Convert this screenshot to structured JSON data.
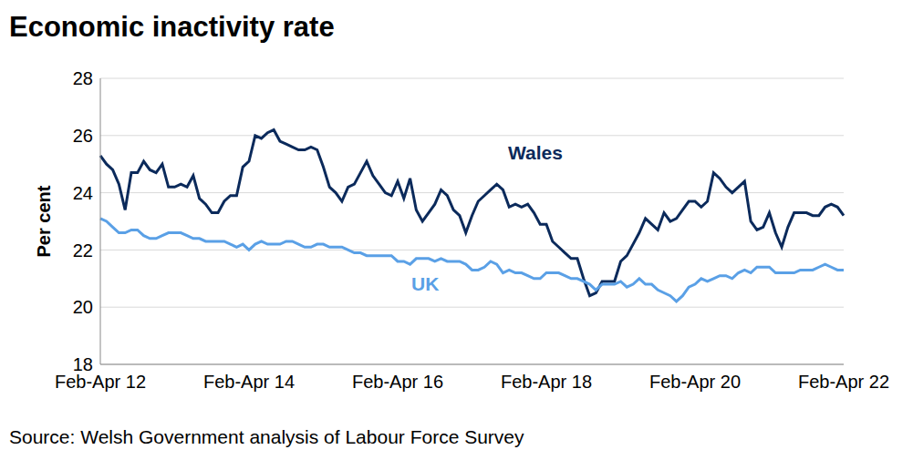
{
  "chart_data": {
    "type": "line",
    "title": "Economic inactivity rate",
    "y_label": "Per cent",
    "source": "Source: Welsh Government analysis of Labour Force Survey",
    "categories": [
      "Feb-Apr 12",
      null,
      null,
      null,
      null,
      null,
      null,
      null,
      null,
      null,
      null,
      null,
      null,
      null,
      null,
      null,
      null,
      null,
      null,
      null,
      null,
      null,
      null,
      null,
      "Feb-Apr 14",
      null,
      null,
      null,
      null,
      null,
      null,
      null,
      null,
      null,
      null,
      null,
      null,
      null,
      null,
      null,
      null,
      null,
      null,
      null,
      null,
      null,
      null,
      null,
      "Feb-Apr 16",
      null,
      null,
      null,
      null,
      null,
      null,
      null,
      null,
      null,
      null,
      null,
      null,
      null,
      null,
      null,
      null,
      null,
      null,
      null,
      null,
      null,
      null,
      null,
      "Feb-Apr 18",
      null,
      null,
      null,
      null,
      null,
      null,
      null,
      null,
      null,
      null,
      null,
      null,
      null,
      null,
      null,
      null,
      null,
      null,
      null,
      null,
      null,
      null,
      null,
      "Feb-Apr 20",
      null,
      null,
      null,
      null,
      null,
      null,
      null,
      null,
      null,
      null,
      null,
      null,
      null,
      null,
      null,
      null,
      null,
      null,
      null,
      null,
      null,
      null,
      null,
      "Feb-Apr 22"
    ],
    "series": [
      {
        "name": "Wales",
        "color": "#0b2a5b",
        "values": [
          25.3,
          25.0,
          24.8,
          24.3,
          23.4,
          24.7,
          24.7,
          25.1,
          24.8,
          24.7,
          25.0,
          24.2,
          24.2,
          24.3,
          24.2,
          24.6,
          23.8,
          23.6,
          23.3,
          23.3,
          23.7,
          23.9,
          23.9,
          24.9,
          25.1,
          26.0,
          25.9,
          26.1,
          26.2,
          25.8,
          25.7,
          25.6,
          25.5,
          25.5,
          25.6,
          25.5,
          24.9,
          24.2,
          24.0,
          23.7,
          24.2,
          24.3,
          24.7,
          25.1,
          24.6,
          24.3,
          24.0,
          23.9,
          24.4,
          23.8,
          24.5,
          23.4,
          23.0,
          23.3,
          23.6,
          24.1,
          23.9,
          23.4,
          23.2,
          22.6,
          23.2,
          23.7,
          23.9,
          24.1,
          24.3,
          24.1,
          23.5,
          23.6,
          23.5,
          23.6,
          23.3,
          22.9,
          22.9,
          22.3,
          22.1,
          21.9,
          21.7,
          21.7,
          21.0,
          20.4,
          20.5,
          20.9,
          20.9,
          20.9,
          21.6,
          21.8,
          22.2,
          22.6,
          23.1,
          22.9,
          22.7,
          23.3,
          23.0,
          23.1,
          23.4,
          23.7,
          23.7,
          23.5,
          23.7,
          24.7,
          24.5,
          24.2,
          24.0,
          24.2,
          24.4,
          23.0,
          22.7,
          22.8,
          23.3,
          22.6,
          22.1,
          22.8,
          23.3,
          23.3,
          23.3,
          23.2,
          23.2,
          23.5,
          23.6,
          23.5,
          23.2
        ]
      },
      {
        "name": "UK",
        "color": "#5aa0e6",
        "values": [
          23.1,
          23.0,
          22.8,
          22.6,
          22.6,
          22.7,
          22.7,
          22.5,
          22.4,
          22.4,
          22.5,
          22.6,
          22.6,
          22.6,
          22.5,
          22.4,
          22.4,
          22.3,
          22.3,
          22.3,
          22.3,
          22.2,
          22.1,
          22.2,
          22.0,
          22.2,
          22.3,
          22.2,
          22.2,
          22.2,
          22.3,
          22.3,
          22.2,
          22.1,
          22.1,
          22.2,
          22.2,
          22.1,
          22.1,
          22.1,
          22.0,
          21.9,
          21.9,
          21.8,
          21.8,
          21.8,
          21.8,
          21.8,
          21.6,
          21.6,
          21.5,
          21.7,
          21.7,
          21.7,
          21.6,
          21.7,
          21.6,
          21.6,
          21.6,
          21.5,
          21.3,
          21.3,
          21.4,
          21.6,
          21.5,
          21.2,
          21.3,
          21.2,
          21.2,
          21.1,
          21.0,
          21.0,
          21.2,
          21.2,
          21.2,
          21.1,
          21.0,
          21.0,
          20.9,
          20.8,
          20.6,
          20.8,
          20.8,
          20.8,
          20.9,
          20.7,
          20.8,
          21.0,
          20.8,
          20.8,
          20.6,
          20.5,
          20.4,
          20.2,
          20.4,
          20.7,
          20.8,
          21.0,
          20.9,
          21.0,
          21.1,
          21.1,
          21.0,
          21.2,
          21.3,
          21.2,
          21.4,
          21.4,
          21.4,
          21.2,
          21.2,
          21.2,
          21.2,
          21.3,
          21.3,
          21.3,
          21.4,
          21.5,
          21.4,
          21.3,
          21.3
        ]
      }
    ],
    "ylim": [
      18,
      28
    ],
    "yticks": [
      18,
      20,
      22,
      24,
      26,
      28
    ],
    "grid": true
  }
}
